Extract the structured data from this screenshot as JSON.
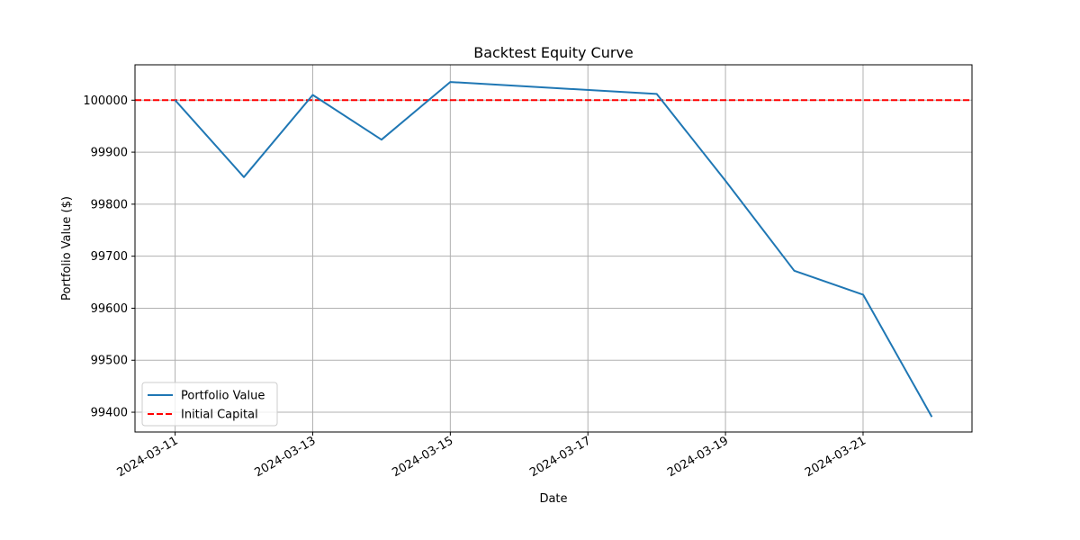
{
  "chart_data": {
    "type": "line",
    "title": "Backtest Equity Curve",
    "xlabel": "Date",
    "ylabel": "Portfolio Value ($)",
    "x_axis_type": "date",
    "xlim": [
      "2024-03-10T10:00",
      "2024-03-22T14:00"
    ],
    "ylim": [
      99362,
      100068
    ],
    "x_ticks": [
      "2024-03-11",
      "2024-03-13",
      "2024-03-15",
      "2024-03-17",
      "2024-03-19",
      "2024-03-21"
    ],
    "y_ticks": [
      99400,
      99500,
      99600,
      99700,
      99800,
      99900,
      100000
    ],
    "grid": true,
    "legend_position": "lower-left",
    "series": [
      {
        "name": "Portfolio Value",
        "color": "#1f77b4",
        "style": "solid",
        "x": [
          "2024-03-11",
          "2024-03-12",
          "2024-03-13",
          "2024-03-14",
          "2024-03-15",
          "2024-03-18",
          "2024-03-19",
          "2024-03-20",
          "2024-03-21",
          "2024-03-22"
        ],
        "y": [
          100000,
          99852,
          100010,
          99924,
          100035,
          100012,
          99845,
          99672,
          99626,
          99391
        ]
      }
    ],
    "reference_lines": [
      {
        "name": "Initial Capital",
        "color": "#ff0000",
        "style": "dashed",
        "y": 100000
      }
    ]
  }
}
